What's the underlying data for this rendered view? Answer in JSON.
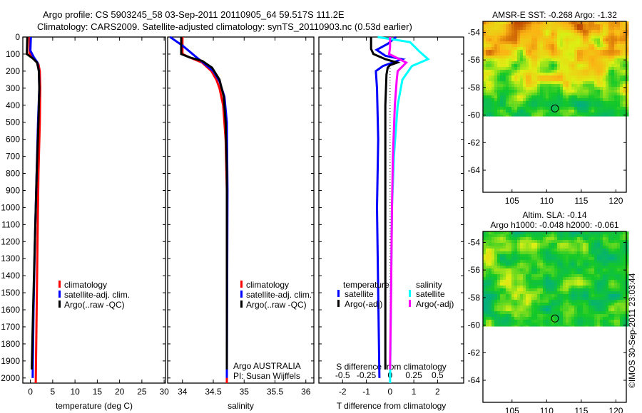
{
  "title": {
    "line1": "Argo profile: CS 5903245_58 03-Sep-2011 20110905_64 59.517S 111.2E",
    "line2": "Climatology: CARS2009. Satellite-adjusted climatology: synTS_20110903.nc (0.53d earlier)"
  },
  "credit": "Argo AUSTRALIA",
  "pi": "PI: Susan Wijffels",
  "stamp": "©IMOS 30-Sep-2011 23:03:44",
  "colors": {
    "climatology": "#ff0000",
    "satellite": "#0000ff",
    "argo": "#000000",
    "s_satellite": "#00ffff",
    "s_argo": "#ff00ff"
  },
  "y_axis": {
    "ticks": [
      0,
      100,
      200,
      300,
      400,
      500,
      600,
      700,
      800,
      900,
      1000,
      1100,
      1200,
      1300,
      1400,
      1500,
      1600,
      1700,
      1800,
      1900,
      2000
    ],
    "range": [
      0,
      2030
    ]
  },
  "chart_data": [
    {
      "type": "line",
      "id": "temperature",
      "xlabel": "temperature (deg C)",
      "xlim": [
        -1.7,
        30.3
      ],
      "xticks": [
        0,
        5,
        10,
        15,
        20,
        25,
        30
      ],
      "legend": [
        "climatology",
        "satellite-adj. clim.",
        "Argo(..raw -QC)"
      ],
      "series": [
        {
          "name": "climatology",
          "p": [
            0,
            100,
            130,
            160,
            200,
            300,
            500,
            800,
            1200,
            1600,
            2030
          ],
          "v": [
            -0.2,
            -0.2,
            0.8,
            1.8,
            2.1,
            2.2,
            2.1,
            1.8,
            1.6,
            1.4,
            1.2
          ]
        },
        {
          "name": "satellite-adj. clim.",
          "p": [
            0,
            80,
            120,
            150,
            200,
            300,
            500,
            800,
            1200,
            1600,
            2000
          ],
          "v": [
            0.1,
            0.0,
            0.8,
            1.6,
            1.9,
            2.0,
            1.7,
            1.4,
            1.0,
            0.7,
            0.5
          ]
        },
        {
          "name": "Argo(..raw -QC)",
          "p": [
            0,
            100,
            125,
            150,
            200,
            300,
            500,
            800,
            1200,
            1600,
            1950
          ],
          "v": [
            -0.7,
            -0.8,
            0.5,
            1.5,
            1.9,
            2.0,
            1.8,
            1.4,
            1.0,
            0.6,
            0.3
          ]
        }
      ]
    },
    {
      "type": "line",
      "id": "salinity",
      "xlabel": "salinity",
      "xlim": [
        33.76,
        36.13
      ],
      "xticks": [
        34,
        34.5,
        35,
        35.5,
        36
      ],
      "legend": [
        "climatology",
        "satellite-adj. clim.",
        "Argo(..raw -QC)"
      ],
      "series": [
        {
          "name": "climatology",
          "p": [
            0,
            100,
            120,
            150,
            200,
            250,
            300,
            400,
            600,
            900,
            2030
          ],
          "v": [
            34.0,
            34.0,
            34.12,
            34.32,
            34.47,
            34.55,
            34.6,
            34.66,
            34.7,
            34.72,
            34.72
          ]
        },
        {
          "name": "satellite-adj. clim.",
          "p": [
            0,
            20,
            50,
            80,
            120,
            160,
            200,
            260,
            350,
            500,
            900,
            2000
          ],
          "v": [
            33.8,
            33.88,
            34.0,
            34.1,
            34.23,
            34.37,
            34.5,
            34.6,
            34.68,
            34.72,
            34.73,
            34.72
          ]
        },
        {
          "name": "Argo(..raw -QC)",
          "p": [
            0,
            100,
            120,
            140,
            180,
            250,
            350,
            500,
            800,
            1950
          ],
          "v": [
            33.98,
            33.98,
            34.12,
            34.32,
            34.48,
            34.6,
            34.67,
            34.7,
            34.72,
            34.72
          ]
        }
      ]
    },
    {
      "type": "line",
      "id": "difference",
      "xlabel": "T difference from climatology",
      "x2label": "S difference from climatology",
      "xlim": [
        -3.0,
        3.1
      ],
      "xticks": [
        -2,
        -1,
        0,
        1,
        2
      ],
      "x2ticks": [
        -0.5,
        -0.25,
        0,
        0.25,
        0.5
      ],
      "legend_t_title": "temperature",
      "legend_s_title": "salinity",
      "legend": [
        "satellite",
        "Argo(-adj)",
        "satellite",
        "Argo(-adj)"
      ],
      "series": [
        {
          "name": "T satellite",
          "units": "degC",
          "p": [
            0,
            40,
            75,
            110,
            130,
            170,
            200,
            300,
            600,
            1000,
            1500,
            2000
          ],
          "v": [
            0.25,
            -0.1,
            -0.57,
            -0.2,
            0.5,
            -0.3,
            -0.6,
            -0.55,
            -0.5,
            -0.55,
            -0.5,
            -0.45
          ]
        },
        {
          "name": "T Argo(-adj)",
          "units": "degC",
          "p": [
            0,
            70,
            100,
            130,
            150,
            165,
            180,
            220,
            400,
            1000,
            1500,
            1950
          ],
          "v": [
            -0.8,
            -0.8,
            -0.7,
            -0.2,
            0.3,
            0.0,
            -0.1,
            -0.15,
            -0.2,
            -0.2,
            -0.2,
            -0.2
          ]
        },
        {
          "name": "S satellite",
          "units": "psu",
          "p": [
            0,
            30,
            80,
            130,
            170,
            250,
            400,
            700,
            1000,
            1500,
            2030
          ],
          "v": [
            -0.13,
            0.21,
            0.3,
            0.4,
            0.23,
            0.13,
            0.08,
            0.04,
            0.02,
            0.01,
            0.0
          ]
        },
        {
          "name": "S Argo(-adj)",
          "units": "psu",
          "p": [
            0,
            60,
            100,
            150,
            200,
            250,
            400,
            700,
            1000,
            1500,
            1950
          ],
          "v": [
            0.0,
            0.0,
            -0.01,
            0.17,
            0.08,
            0.07,
            0.05,
            0.03,
            0.02,
            0.01,
            0.0
          ]
        }
      ]
    },
    {
      "type": "heatmap",
      "id": "sst-map",
      "title": "AMSR-E SST: -0.268 Argo: -1.32",
      "xlim": [
        100.8,
        121.5
      ],
      "ylim": [
        -65.6,
        -53.2
      ],
      "xticks": [
        105,
        110,
        115,
        120
      ],
      "yticks": [
        -54,
        -56,
        -58,
        -60,
        -62,
        -64
      ],
      "data_extent_lat": -60.1,
      "marker": {
        "lon": 111.2,
        "lat": -59.517
      }
    },
    {
      "type": "heatmap",
      "id": "sla-map",
      "title": "Altim. SLA: -0.14",
      "subtitle": "Argo h1000: -0.048 h2000: -0.061",
      "xlim": [
        100.8,
        121.5
      ],
      "ylim": [
        -65.6,
        -53.2
      ],
      "xticks": [
        105,
        110,
        115,
        120
      ],
      "yticks": [
        -54,
        -56,
        -58,
        -60,
        -62,
        -64
      ],
      "data_extent_lat": -60.1,
      "marker": {
        "lon": 111.2,
        "lat": -59.517
      }
    }
  ]
}
